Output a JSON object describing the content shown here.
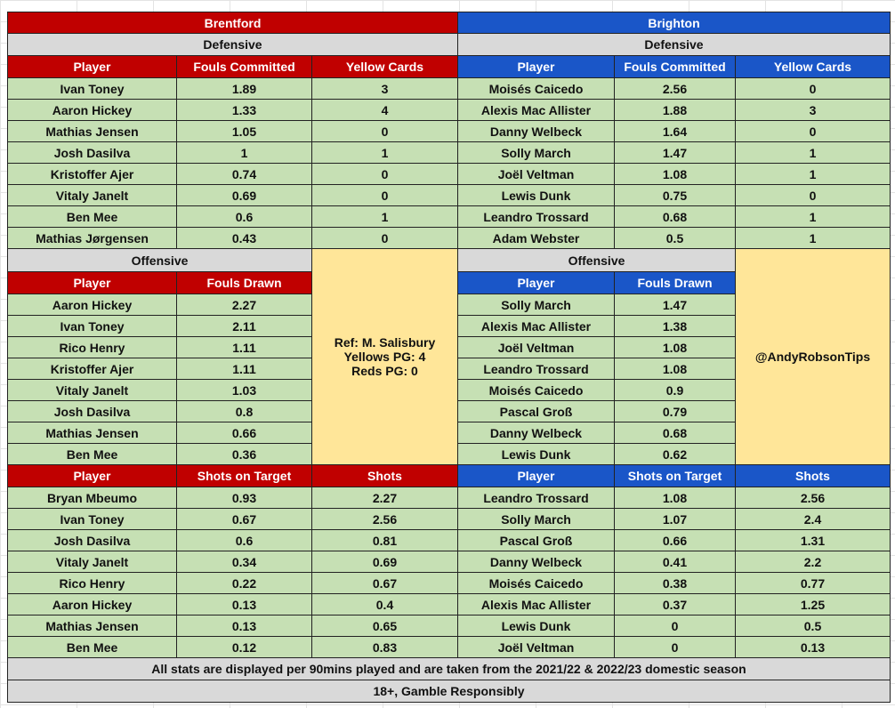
{
  "teams": [
    {
      "name": "Brentford",
      "defensive": {
        "title": "Defensive",
        "headers": [
          "Player",
          "Fouls Committed",
          "Yellow Cards"
        ],
        "rows": [
          [
            "Ivan Toney",
            "1.89",
            "3"
          ],
          [
            "Aaron Hickey",
            "1.33",
            "4"
          ],
          [
            "Mathias Jensen",
            "1.05",
            "0"
          ],
          [
            "Josh Dasilva",
            "1",
            "1"
          ],
          [
            "Kristoffer Ajer",
            "0.74",
            "0"
          ],
          [
            "Vitaly Janelt",
            "0.69",
            "0"
          ],
          [
            "Ben Mee",
            "0.6",
            "1"
          ],
          [
            "Mathias Jørgensen",
            "0.43",
            "0"
          ]
        ]
      },
      "offensive": {
        "title": "Offensive",
        "headers": [
          "Player",
          "Fouls Drawn"
        ],
        "rows": [
          [
            "Aaron Hickey",
            "2.27"
          ],
          [
            "Ivan Toney",
            "2.11"
          ],
          [
            "Rico Henry",
            "1.11"
          ],
          [
            "Kristoffer Ajer",
            "1.11"
          ],
          [
            "Vitaly Janelt",
            "1.03"
          ],
          [
            "Josh Dasilva",
            "0.8"
          ],
          [
            "Mathias Jensen",
            "0.66"
          ],
          [
            "Ben Mee",
            "0.36"
          ]
        ]
      },
      "note": [
        "Ref: M. Salisbury",
        "Yellows PG: 4",
        "Reds PG: 0"
      ],
      "shots": {
        "headers": [
          "Player",
          "Shots on Target",
          "Shots"
        ],
        "rows": [
          [
            "Bryan Mbeumo",
            "0.93",
            "2.27"
          ],
          [
            "Ivan Toney",
            "0.67",
            "2.56"
          ],
          [
            "Josh Dasilva",
            "0.6",
            "0.81"
          ],
          [
            "Vitaly Janelt",
            "0.34",
            "0.69"
          ],
          [
            "Rico Henry",
            "0.22",
            "0.67"
          ],
          [
            "Aaron Hickey",
            "0.13",
            "0.4"
          ],
          [
            "Mathias Jensen",
            "0.13",
            "0.65"
          ],
          [
            "Ben Mee",
            "0.12",
            "0.83"
          ]
        ]
      }
    },
    {
      "name": "Brighton",
      "defensive": {
        "title": "Defensive",
        "headers": [
          "Player",
          "Fouls Committed",
          "Yellow Cards"
        ],
        "rows": [
          [
            "Moisés Caicedo",
            "2.56",
            "0"
          ],
          [
            "Alexis Mac Allister",
            "1.88",
            "3"
          ],
          [
            "Danny Welbeck",
            "1.64",
            "0"
          ],
          [
            "Solly March",
            "1.47",
            "1"
          ],
          [
            "Joël Veltman",
            "1.08",
            "1"
          ],
          [
            "Lewis Dunk",
            "0.75",
            "0"
          ],
          [
            "Leandro Trossard",
            "0.68",
            "1"
          ],
          [
            "Adam Webster",
            "0.5",
            "1"
          ]
        ]
      },
      "offensive": {
        "title": "Offensive",
        "headers": [
          "Player",
          "Fouls Drawn"
        ],
        "rows": [
          [
            "Solly March",
            "1.47"
          ],
          [
            "Alexis Mac Allister",
            "1.38"
          ],
          [
            "Joël Veltman",
            "1.08"
          ],
          [
            "Leandro Trossard",
            "1.08"
          ],
          [
            "Moisés Caicedo",
            "0.9"
          ],
          [
            "Pascal Groß",
            "0.79"
          ],
          [
            "Danny Welbeck",
            "0.68"
          ],
          [
            "Lewis Dunk",
            "0.62"
          ]
        ]
      },
      "note": [
        "@AndyRobsonTips"
      ],
      "shots": {
        "headers": [
          "Player",
          "Shots on Target",
          "Shots"
        ],
        "rows": [
          [
            "Leandro Trossard",
            "1.08",
            "2.56"
          ],
          [
            "Solly March",
            "1.07",
            "2.4"
          ],
          [
            "Pascal Groß",
            "0.66",
            "1.31"
          ],
          [
            "Danny Welbeck",
            "0.41",
            "2.2"
          ],
          [
            "Moisés Caicedo",
            "0.38",
            "0.77"
          ],
          [
            "Alexis Mac Allister",
            "0.37",
            "1.25"
          ],
          [
            "Lewis Dunk",
            "0",
            "0.5"
          ],
          [
            "Joël Veltman",
            "0",
            "0.13"
          ]
        ]
      }
    }
  ],
  "footer": [
    "All stats are displayed per 90mins played and are taken from the 2021/22 & 2022/23 domestic season",
    "18+, Gamble Responsibly"
  ]
}
